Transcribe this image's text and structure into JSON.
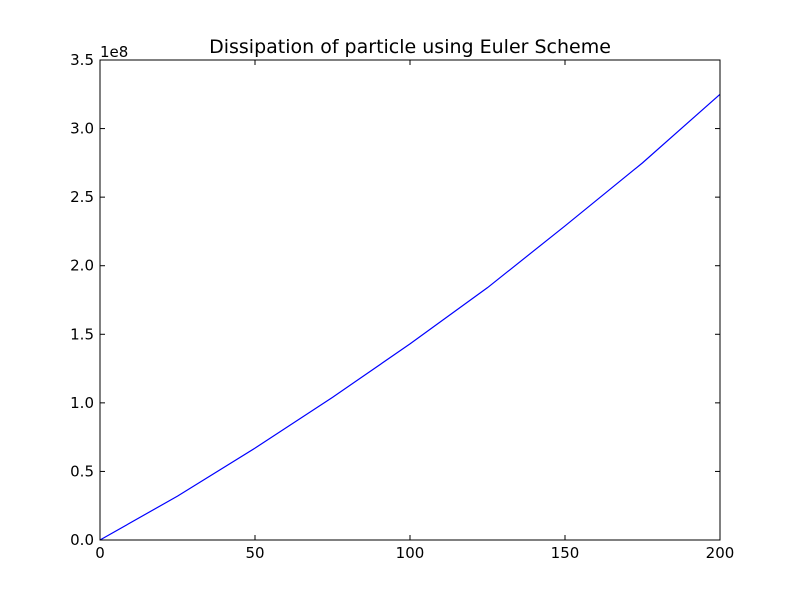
{
  "chart_data": {
    "type": "line",
    "title": "Dissipation of particle using Euler Scheme",
    "xlabel": "",
    "ylabel": "",
    "xlim": [
      0,
      200
    ],
    "ylim": [
      0,
      3.5
    ],
    "y_offset_label": "1e8",
    "x_ticks": [
      "0",
      "50",
      "100",
      "150",
      "200"
    ],
    "y_ticks": [
      "0.0",
      "0.5",
      "1.0",
      "1.5",
      "2.0",
      "2.5",
      "3.0",
      "3.5"
    ],
    "grid": false,
    "series": [
      {
        "color": "#0000ff",
        "x": [
          0,
          25,
          50,
          75,
          100,
          125,
          150,
          175,
          200
        ],
        "y": [
          0,
          0.32,
          0.67,
          1.04,
          1.43,
          1.84,
          2.29,
          2.75,
          3.25
        ]
      }
    ]
  }
}
